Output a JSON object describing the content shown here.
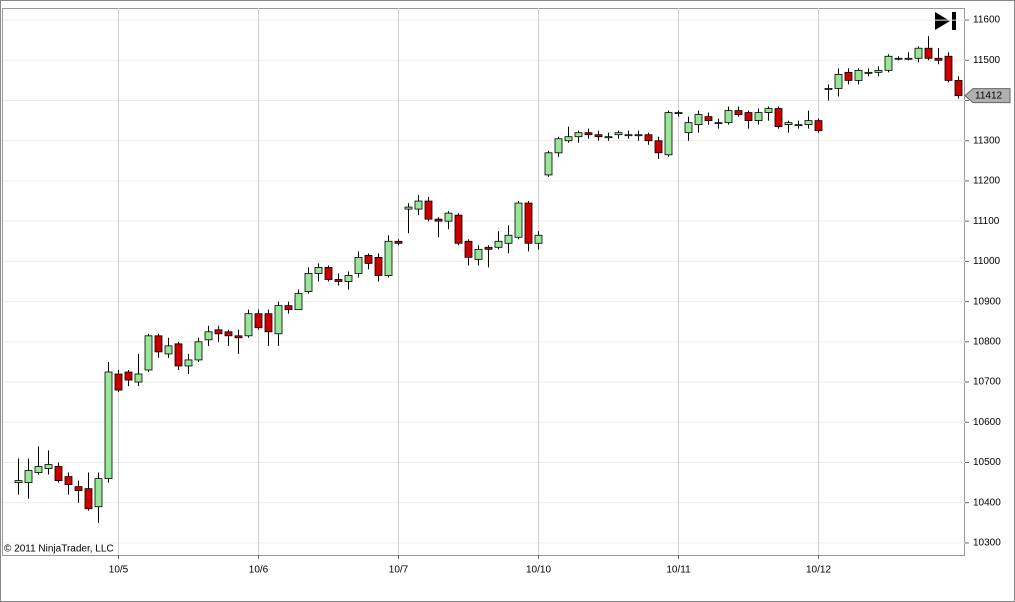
{
  "chart_data": {
    "type": "candlestick",
    "copyright": "© 2011 NinjaTrader, LLC",
    "categories": [
      null,
      null,
      null,
      null,
      null,
      null,
      null,
      null,
      null,
      null,
      "10/5",
      null,
      null,
      null,
      null,
      null,
      null,
      null,
      null,
      null,
      null,
      null,
      null,
      null,
      "10/6",
      null,
      null,
      null,
      null,
      null,
      null,
      null,
      null,
      null,
      null,
      null,
      null,
      null,
      "10/7",
      null,
      null,
      null,
      null,
      null,
      null,
      null,
      null,
      null,
      null,
      null,
      null,
      null,
      "10/10",
      null,
      null,
      null,
      null,
      null,
      null,
      null,
      null,
      null,
      null,
      null,
      null,
      null,
      "10/11",
      null,
      null,
      null,
      null,
      null,
      null,
      null,
      null,
      null,
      null,
      null,
      null,
      null,
      "10/12",
      null,
      null,
      null,
      null,
      null,
      null,
      null,
      null,
      null,
      null,
      null,
      null,
      null,
      null
    ],
    "open": [
      10450,
      10450,
      10475,
      10485,
      10490,
      10465,
      10440,
      10435,
      10390,
      10460,
      10720,
      10725,
      10700,
      10730,
      10815,
      10770,
      10795,
      10740,
      10755,
      10805,
      10830,
      10825,
      10815,
      10815,
      10870,
      10870,
      10820,
      10890,
      10880,
      10925,
      10970,
      10985,
      10955,
      10950,
      10970,
      11015,
      11010,
      10965,
      11050,
      11130,
      11130,
      11150,
      11105,
      11100,
      11115,
      11050,
      11005,
      11035,
      11035,
      11045,
      11060,
      11145,
      11045,
      11215,
      11270,
      11300,
      11310,
      11320,
      11315,
      11310,
      11315,
      11315,
      11315,
      11315,
      11300,
      11265,
      11370,
      11320,
      11340,
      11360,
      11345,
      11345,
      11375,
      11370,
      11350,
      11370,
      11380,
      11340,
      11340,
      11340,
      11350,
      11430,
      11430,
      11470,
      11450,
      11470,
      11470,
      11475,
      11505,
      11505,
      11505,
      11530,
      11505,
      11510,
      11450
    ],
    "high": [
      10510,
      10510,
      10540,
      10530,
      10500,
      10475,
      10455,
      10475,
      10475,
      10750,
      10730,
      10730,
      10770,
      10820,
      10820,
      10810,
      10800,
      10770,
      10810,
      10840,
      10840,
      10830,
      10830,
      10880,
      10880,
      10880,
      10900,
      10900,
      10930,
      10985,
      10995,
      10990,
      10970,
      10975,
      11025,
      11020,
      11020,
      11065,
      11055,
      11145,
      11165,
      11160,
      11110,
      11125,
      11120,
      11055,
      11040,
      11040,
      11075,
      11090,
      11150,
      11150,
      11075,
      11275,
      11310,
      11335,
      11325,
      11330,
      11325,
      11320,
      11325,
      11325,
      11325,
      11320,
      11310,
      11375,
      11375,
      11360,
      11375,
      11370,
      11355,
      11385,
      11385,
      11375,
      11380,
      11385,
      11385,
      11350,
      11350,
      11375,
      11355,
      11440,
      11480,
      11480,
      11480,
      11480,
      11485,
      11515,
      11510,
      11520,
      11535,
      11560,
      11530,
      11520,
      11460
    ],
    "low": [
      10420,
      10410,
      10470,
      10470,
      10450,
      10420,
      10400,
      10380,
      10350,
      10450,
      10675,
      10690,
      10690,
      10725,
      10760,
      10760,
      10730,
      10720,
      10750,
      10790,
      10800,
      10790,
      10770,
      10810,
      10830,
      10790,
      10790,
      10870,
      10880,
      10920,
      10950,
      10950,
      10940,
      10930,
      10960,
      10980,
      10950,
      10960,
      11040,
      11070,
      11115,
      11100,
      11060,
      11080,
      11040,
      10990,
      10990,
      10985,
      11030,
      11020,
      11055,
      11025,
      11030,
      11210,
      11260,
      11295,
      11295,
      11305,
      11300,
      11300,
      11305,
      11305,
      11300,
      11290,
      11255,
      11260,
      11360,
      11300,
      11320,
      11340,
      11330,
      11340,
      11360,
      11330,
      11340,
      11350,
      11330,
      11320,
      11330,
      11330,
      11320,
      11400,
      11410,
      11440,
      11440,
      11460,
      11460,
      11470,
      11500,
      11500,
      11495,
      11500,
      11490,
      11445,
      11405
    ],
    "close": [
      10455,
      10480,
      10490,
      10495,
      10455,
      10445,
      10430,
      10385,
      10460,
      10725,
      10680,
      10705,
      10720,
      10815,
      10775,
      10790,
      10740,
      10755,
      10800,
      10825,
      10820,
      10815,
      10810,
      10870,
      10835,
      10825,
      10890,
      10880,
      10920,
      10970,
      10985,
      10955,
      10950,
      10965,
      11010,
      10995,
      10965,
      11050,
      11045,
      11135,
      11150,
      11105,
      11100,
      11120,
      11045,
      11010,
      11030,
      11030,
      11050,
      11065,
      11145,
      11045,
      11065,
      11270,
      11305,
      11310,
      11320,
      11315,
      11310,
      11310,
      11320,
      11315,
      11315,
      11300,
      11270,
      11370,
      11370,
      11345,
      11365,
      11350,
      11345,
      11375,
      11365,
      11350,
      11370,
      11380,
      11335,
      11345,
      11340,
      11350,
      11325,
      11430,
      11465,
      11450,
      11475,
      11470,
      11475,
      11510,
      11505,
      11505,
      11530,
      11505,
      11500,
      11450,
      11412
    ],
    "up_color": "#98e698",
    "down_color": "#cc0000",
    "last_price": 11412,
    "ylim": [
      10270,
      11630
    ],
    "yticks": [
      10300,
      10400,
      10500,
      10600,
      10700,
      10800,
      10900,
      11000,
      11100,
      11200,
      11300,
      11400,
      11500,
      11600
    ],
    "grid": true
  }
}
